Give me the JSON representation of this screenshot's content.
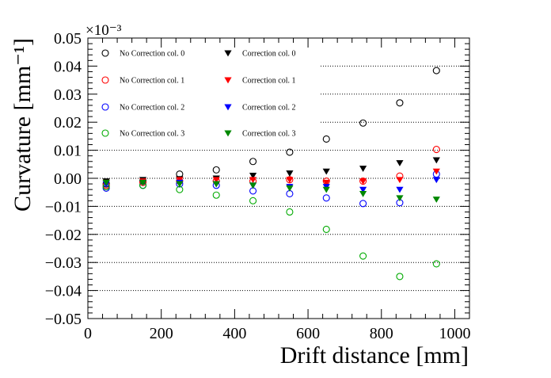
{
  "chart_data": {
    "type": "scatter",
    "title": "",
    "xlabel": "Drift distance [mm]",
    "ylabel": "Curvature [mm⁻¹]",
    "y_multiplier": "×10⁻³",
    "xlim": [
      0,
      1040
    ],
    "ylim": [
      -0.05,
      0.05
    ],
    "x_ticks": [
      0,
      200,
      400,
      600,
      800,
      1000
    ],
    "x_tick_labels": [
      "0",
      "200",
      "400",
      "600",
      "800",
      "1000"
    ],
    "y_ticks": [
      -0.05,
      -0.04,
      -0.03,
      -0.02,
      -0.01,
      0.0,
      0.01,
      0.02,
      0.03,
      0.04,
      0.05
    ],
    "y_tick_labels": [
      "−0.05",
      "−0.04",
      "−0.03",
      "−0.02",
      "−0.01",
      "0.00",
      "0.01",
      "0.02",
      "0.03",
      "0.04",
      "0.05"
    ],
    "grid": "horizontal dotted",
    "legend_position": "top",
    "x": [
      50,
      150,
      250,
      350,
      450,
      550,
      650,
      750,
      850,
      950
    ],
    "series": [
      {
        "name": "No Correction col. 0",
        "marker": "open-circle",
        "color": "#000000",
        "values": [
          -0.002,
          -0.001,
          0.0015,
          0.003,
          0.006,
          0.0093,
          0.014,
          0.0197,
          0.0269,
          0.0384
        ]
      },
      {
        "name": "No Correction col. 1",
        "marker": "open-circle",
        "color": "#ff0000",
        "values": [
          -0.0025,
          -0.0015,
          -0.001,
          -0.001,
          -0.001,
          -0.0005,
          -0.001,
          -0.001,
          0.0008,
          0.0103
        ]
      },
      {
        "name": "No Correction col. 2",
        "marker": "open-circle",
        "color": "#0000ff",
        "values": [
          -0.0035,
          -0.0025,
          -0.002,
          -0.0025,
          -0.0045,
          -0.0055,
          -0.007,
          -0.009,
          -0.0087,
          0.0015
        ]
      },
      {
        "name": "No Correction col. 3",
        "marker": "open-circle",
        "color": "#00aa00",
        "values": [
          -0.003,
          -0.0025,
          -0.004,
          -0.006,
          -0.008,
          -0.012,
          -0.0182,
          -0.0277,
          -0.035,
          -0.0305
        ]
      },
      {
        "name": "Correction col. 0",
        "marker": "filled-triangle-down",
        "color": "#000000",
        "values": [
          -0.001,
          -0.0005,
          -0.0002,
          0.0,
          0.001,
          0.0018,
          0.0025,
          0.0035,
          0.0055,
          0.0065
        ]
      },
      {
        "name": "Correction col. 1",
        "marker": "filled-triangle-down",
        "color": "#ff0000",
        "values": [
          -0.0015,
          -0.001,
          -0.0005,
          -0.0005,
          -0.0005,
          -0.0005,
          -0.0015,
          -0.001,
          -0.0005,
          0.0025
        ]
      },
      {
        "name": "Correction col. 2",
        "marker": "filled-triangle-down",
        "color": "#0000ff",
        "values": [
          -0.002,
          -0.0015,
          -0.0015,
          -0.002,
          -0.0025,
          -0.003,
          -0.003,
          -0.004,
          -0.004,
          -0.0005
        ]
      },
      {
        "name": "Correction col. 3",
        "marker": "filled-triangle-down",
        "color": "#008800",
        "values": [
          -0.0015,
          -0.0015,
          -0.002,
          -0.002,
          -0.0025,
          -0.0035,
          -0.004,
          -0.0055,
          -0.007,
          -0.0075
        ]
      }
    ]
  }
}
